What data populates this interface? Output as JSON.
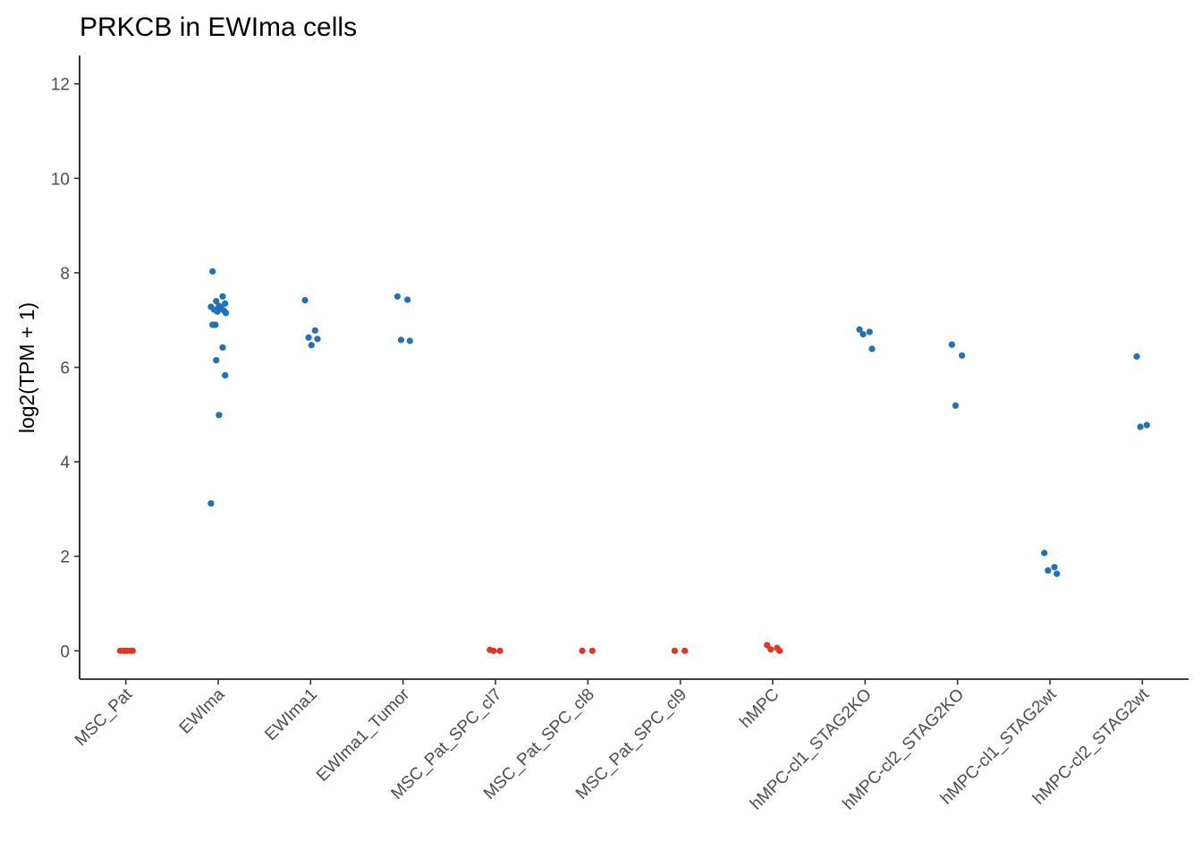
{
  "chart_data": {
    "type": "scatter",
    "title": "PRKCB in EWIma cells",
    "xlabel": "",
    "ylabel": "log2(TPM + 1)",
    "ylim": [
      -0.6,
      12.6
    ],
    "yticks": [
      0,
      2,
      4,
      6,
      8,
      10,
      12
    ],
    "grid": false,
    "legend": "none",
    "colors": {
      "low": "#D73A2A",
      "high": "#2270B5"
    },
    "categories": [
      "MSC_Pat",
      "EWIma",
      "EWIma1",
      "EWIma1_Tumor",
      "MSC_Pat_SPC_cl7",
      "MSC_Pat_SPC_cl8",
      "MSC_Pat_SPC_cl9",
      "hMPC",
      "hMPC-cl1_STAG2KO",
      "hMPC-cl2_STAG2KO",
      "hMPC-cl1_STAG2wt",
      "hMPC-cl2_STAG2wt"
    ],
    "points": [
      {
        "category": "MSC_Pat",
        "y": 0.0,
        "color": "low"
      },
      {
        "category": "MSC_Pat",
        "y": 0.0,
        "color": "low"
      },
      {
        "category": "MSC_Pat",
        "y": 0.0,
        "color": "low"
      },
      {
        "category": "MSC_Pat",
        "y": 0.0,
        "color": "low"
      },
      {
        "category": "MSC_Pat",
        "y": 0.0,
        "color": "low"
      },
      {
        "category": "EWIma",
        "y": 8.03,
        "color": "high"
      },
      {
        "category": "EWIma",
        "y": 7.5,
        "color": "high"
      },
      {
        "category": "EWIma",
        "y": 7.4,
        "color": "high"
      },
      {
        "category": "EWIma",
        "y": 7.35,
        "color": "high"
      },
      {
        "category": "EWIma",
        "y": 7.3,
        "color": "high"
      },
      {
        "category": "EWIma",
        "y": 7.28,
        "color": "high"
      },
      {
        "category": "EWIma",
        "y": 7.25,
        "color": "high"
      },
      {
        "category": "EWIma",
        "y": 7.22,
        "color": "high"
      },
      {
        "category": "EWIma",
        "y": 7.2,
        "color": "high"
      },
      {
        "category": "EWIma",
        "y": 7.18,
        "color": "high"
      },
      {
        "category": "EWIma",
        "y": 7.15,
        "color": "high"
      },
      {
        "category": "EWIma",
        "y": 6.9,
        "color": "high"
      },
      {
        "category": "EWIma",
        "y": 6.9,
        "color": "high"
      },
      {
        "category": "EWIma",
        "y": 6.42,
        "color": "high"
      },
      {
        "category": "EWIma",
        "y": 6.15,
        "color": "high"
      },
      {
        "category": "EWIma",
        "y": 5.83,
        "color": "high"
      },
      {
        "category": "EWIma",
        "y": 4.99,
        "color": "high"
      },
      {
        "category": "EWIma",
        "y": 3.12,
        "color": "high"
      },
      {
        "category": "EWIma1",
        "y": 7.42,
        "color": "high"
      },
      {
        "category": "EWIma1",
        "y": 6.78,
        "color": "high"
      },
      {
        "category": "EWIma1",
        "y": 6.63,
        "color": "high"
      },
      {
        "category": "EWIma1",
        "y": 6.6,
        "color": "high"
      },
      {
        "category": "EWIma1",
        "y": 6.47,
        "color": "high"
      },
      {
        "category": "EWIma1_Tumor",
        "y": 7.5,
        "color": "high"
      },
      {
        "category": "EWIma1_Tumor",
        "y": 7.43,
        "color": "high"
      },
      {
        "category": "EWIma1_Tumor",
        "y": 6.58,
        "color": "high"
      },
      {
        "category": "EWIma1_Tumor",
        "y": 6.56,
        "color": "high"
      },
      {
        "category": "MSC_Pat_SPC_cl7",
        "y": 0.02,
        "color": "low"
      },
      {
        "category": "MSC_Pat_SPC_cl7",
        "y": 0.0,
        "color": "low"
      },
      {
        "category": "MSC_Pat_SPC_cl7",
        "y": 0.0,
        "color": "low"
      },
      {
        "category": "MSC_Pat_SPC_cl8",
        "y": 0.0,
        "color": "low"
      },
      {
        "category": "MSC_Pat_SPC_cl8",
        "y": 0.0,
        "color": "low"
      },
      {
        "category": "MSC_Pat_SPC_cl9",
        "y": 0.0,
        "color": "low"
      },
      {
        "category": "MSC_Pat_SPC_cl9",
        "y": 0.0,
        "color": "low"
      },
      {
        "category": "hMPC",
        "y": 0.12,
        "color": "low"
      },
      {
        "category": "hMPC",
        "y": 0.06,
        "color": "low"
      },
      {
        "category": "hMPC",
        "y": 0.03,
        "color": "low"
      },
      {
        "category": "hMPC",
        "y": 0.0,
        "color": "low"
      },
      {
        "category": "hMPC-cl1_STAG2KO",
        "y": 6.8,
        "color": "high"
      },
      {
        "category": "hMPC-cl1_STAG2KO",
        "y": 6.75,
        "color": "high"
      },
      {
        "category": "hMPC-cl1_STAG2KO",
        "y": 6.7,
        "color": "high"
      },
      {
        "category": "hMPC-cl1_STAG2KO",
        "y": 6.39,
        "color": "high"
      },
      {
        "category": "hMPC-cl2_STAG2KO",
        "y": 6.48,
        "color": "high"
      },
      {
        "category": "hMPC-cl2_STAG2KO",
        "y": 6.25,
        "color": "high"
      },
      {
        "category": "hMPC-cl2_STAG2KO",
        "y": 5.19,
        "color": "high"
      },
      {
        "category": "hMPC-cl1_STAG2wt",
        "y": 2.07,
        "color": "high"
      },
      {
        "category": "hMPC-cl1_STAG2wt",
        "y": 1.77,
        "color": "high"
      },
      {
        "category": "hMPC-cl1_STAG2wt",
        "y": 1.7,
        "color": "high"
      },
      {
        "category": "hMPC-cl1_STAG2wt",
        "y": 1.63,
        "color": "high"
      },
      {
        "category": "hMPC-cl2_STAG2wt",
        "y": 6.23,
        "color": "high"
      },
      {
        "category": "hMPC-cl2_STAG2wt",
        "y": 4.78,
        "color": "high"
      },
      {
        "category": "hMPC-cl2_STAG2wt",
        "y": 4.74,
        "color": "high"
      }
    ]
  }
}
